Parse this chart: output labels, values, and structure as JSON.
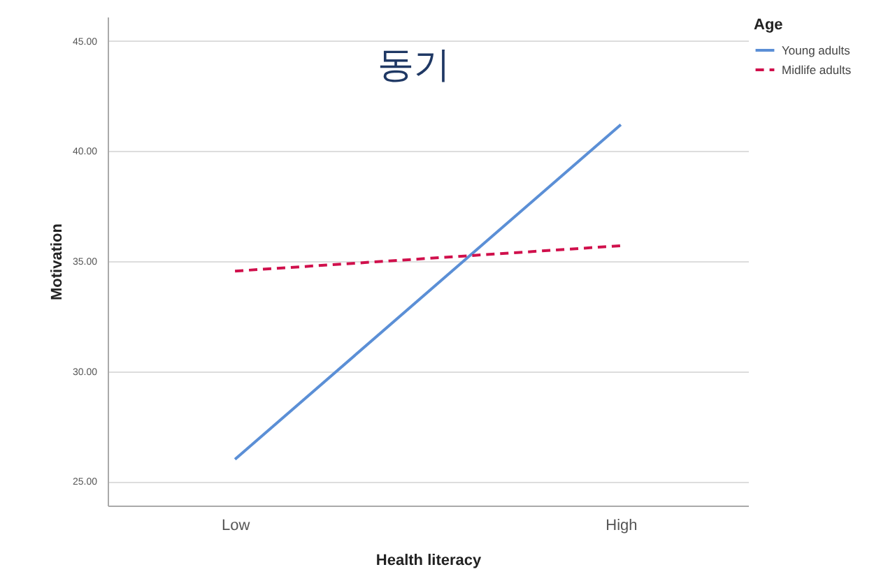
{
  "chart_data": {
    "type": "line",
    "title": "동기",
    "xlabel": "Health literacy",
    "ylabel": "Motivation",
    "legend_title": "Age",
    "categories": [
      "Low",
      "High"
    ],
    "series": [
      {
        "name": "Young adults",
        "color": "#5b8fd6",
        "line_style": "solid",
        "values": [
          26.0,
          41.2
        ]
      },
      {
        "name": "Midlife adults",
        "color": "#d0104c",
        "line_style": "dashed",
        "values": [
          34.55,
          35.7
        ]
      }
    ],
    "ylim": [
      23.9,
      46.1
    ],
    "yticks": [
      {
        "value": 25,
        "label": "25.00"
      },
      {
        "value": 30,
        "label": "30.00"
      },
      {
        "value": 35,
        "label": "35.00"
      },
      {
        "value": 40,
        "label": "40.00"
      },
      {
        "value": 45,
        "label": "45.00"
      }
    ],
    "grid": "y",
    "legend": "top right",
    "marker": "none"
  }
}
